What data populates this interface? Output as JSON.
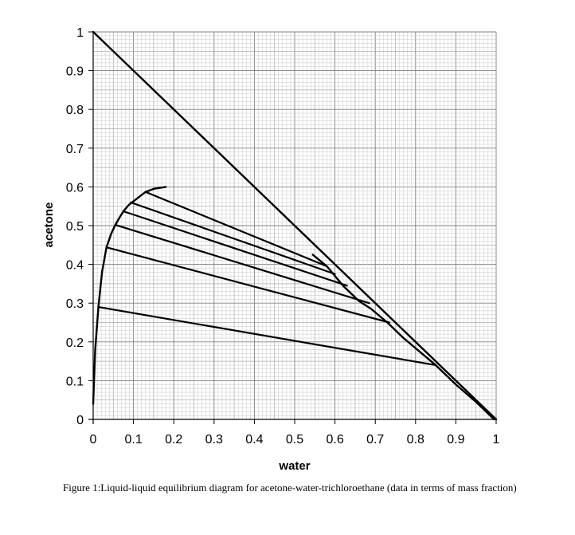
{
  "chart_data": {
    "type": "line",
    "xlabel": "water",
    "ylabel": "acetone",
    "xlim": [
      0,
      1
    ],
    "ylim": [
      0,
      1
    ],
    "grid": true,
    "x_ticks": [
      "0",
      "0.1",
      "0.2",
      "0.3",
      "0.4",
      "0.5",
      "0.6",
      "0.7",
      "0.8",
      "0.9",
      "1"
    ],
    "y_ticks": [
      "0",
      "0.1",
      "0.2",
      "0.3",
      "0.4",
      "0.5",
      "0.6",
      "0.7",
      "0.8",
      "0.9",
      "1"
    ],
    "series": [
      {
        "id": "hypotenuse",
        "points": [
          [
            0,
            1
          ],
          [
            1,
            0
          ]
        ]
      },
      {
        "id": "extract-branch",
        "points": [
          [
            0.0,
            0.04
          ],
          [
            0.005,
            0.18
          ],
          [
            0.013,
            0.29
          ],
          [
            0.022,
            0.38
          ],
          [
            0.033,
            0.444
          ],
          [
            0.045,
            0.48
          ],
          [
            0.055,
            0.502
          ],
          [
            0.065,
            0.52
          ],
          [
            0.075,
            0.537
          ],
          [
            0.088,
            0.553
          ],
          [
            0.1,
            0.563
          ],
          [
            0.115,
            0.575
          ],
          [
            0.13,
            0.587
          ],
          [
            0.15,
            0.595
          ],
          [
            0.18,
            0.6
          ]
        ]
      },
      {
        "id": "raffinate-branch",
        "points": [
          [
            0.545,
            0.425
          ],
          [
            0.58,
            0.395
          ],
          [
            0.62,
            0.345
          ],
          [
            0.66,
            0.305
          ],
          [
            0.69,
            0.285
          ],
          [
            0.73,
            0.25
          ],
          [
            0.77,
            0.21
          ],
          [
            0.81,
            0.175
          ],
          [
            0.85,
            0.14
          ],
          [
            0.9,
            0.09
          ],
          [
            0.95,
            0.045
          ],
          [
            0.995,
            0.0
          ]
        ]
      }
    ],
    "tie_lines": [
      [
        [
          0.013,
          0.29
        ],
        [
          0.85,
          0.14
        ]
      ],
      [
        [
          0.033,
          0.444
        ],
        [
          0.735,
          0.25
        ]
      ],
      [
        [
          0.055,
          0.502
        ],
        [
          0.685,
          0.3
        ]
      ],
      [
        [
          0.075,
          0.537
        ],
        [
          0.63,
          0.345
        ]
      ],
      [
        [
          0.093,
          0.56
        ],
        [
          0.6,
          0.375
        ]
      ],
      [
        [
          0.13,
          0.587
        ],
        [
          0.58,
          0.395
        ]
      ]
    ]
  },
  "caption": "Figure 1:Liquid-liquid equilibrium diagram for acetone-water-trichloroethane (data in terms of mass fraction)"
}
